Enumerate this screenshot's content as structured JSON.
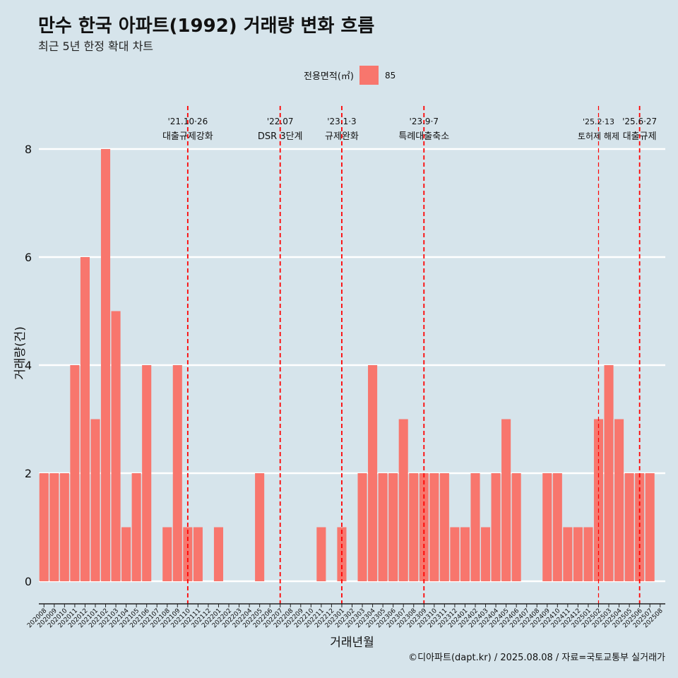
{
  "header": {
    "title": "만수 한국 아파트(1992) 거래량 변화 흐름",
    "subtitle": "최근 5년 한정 확대 차트"
  },
  "legend": {
    "title": "전용면적(㎡)",
    "items": [
      {
        "label": "85",
        "color": "#f8766d"
      }
    ]
  },
  "caption": "©디아파트(dapt.kr) / 2025.08.08 / 자료=국토교통부 실거래가",
  "chart_data": {
    "type": "bar",
    "xlabel": "거래년월",
    "ylabel": "거래량(건)",
    "ylim": [
      0,
      8
    ],
    "y_ticks": [
      0,
      2,
      4,
      6,
      8
    ],
    "bar_color": "#f8766d",
    "categories": [
      "202008",
      "202009",
      "202010",
      "202011",
      "202012",
      "202101",
      "202102",
      "202103",
      "202104",
      "202105",
      "202106",
      "202107",
      "202108",
      "202109",
      "202110",
      "202111",
      "202112",
      "202201",
      "202202",
      "202203",
      "202204",
      "202205",
      "202206",
      "202207",
      "202208",
      "202209",
      "202210",
      "202211",
      "202212",
      "202301",
      "202302",
      "202303",
      "202304",
      "202305",
      "202306",
      "202307",
      "202308",
      "202309",
      "202310",
      "202311",
      "202312",
      "202401",
      "202402",
      "202403",
      "202404",
      "202405",
      "202406",
      "202407",
      "202408",
      "202409",
      "202410",
      "202411",
      "202412",
      "202501",
      "202502",
      "202503",
      "202504",
      "202505",
      "202506",
      "202507",
      "202508"
    ],
    "values": [
      2,
      2,
      2,
      4,
      6,
      3,
      8,
      5,
      1,
      2,
      4,
      0,
      1,
      4,
      1,
      1,
      0,
      1,
      0,
      0,
      0,
      2,
      0,
      0,
      0,
      0,
      0,
      1,
      0,
      1,
      0,
      2,
      4,
      2,
      2,
      3,
      2,
      2,
      2,
      2,
      1,
      1,
      2,
      1,
      2,
      3,
      2,
      0,
      0,
      2,
      2,
      1,
      1,
      1,
      3,
      4,
      3,
      2,
      2,
      2,
      0
    ],
    "annotations": [
      {
        "category": "202110",
        "date": "'21.10·26",
        "label": "대출규제강화"
      },
      {
        "category": "202207",
        "date": "'22.07",
        "label": "DSR 3단계"
      },
      {
        "category": "202301",
        "date": "'23.1·3",
        "label": "규제완화"
      },
      {
        "category": "202309",
        "date": "'23.9·7",
        "label": "특례대출축소"
      },
      {
        "category": "202502",
        "date": "'25.2·13",
        "label": "토허제 해제"
      },
      {
        "category": "202506",
        "date": "'25.6·27",
        "label": "대출규제"
      }
    ]
  }
}
